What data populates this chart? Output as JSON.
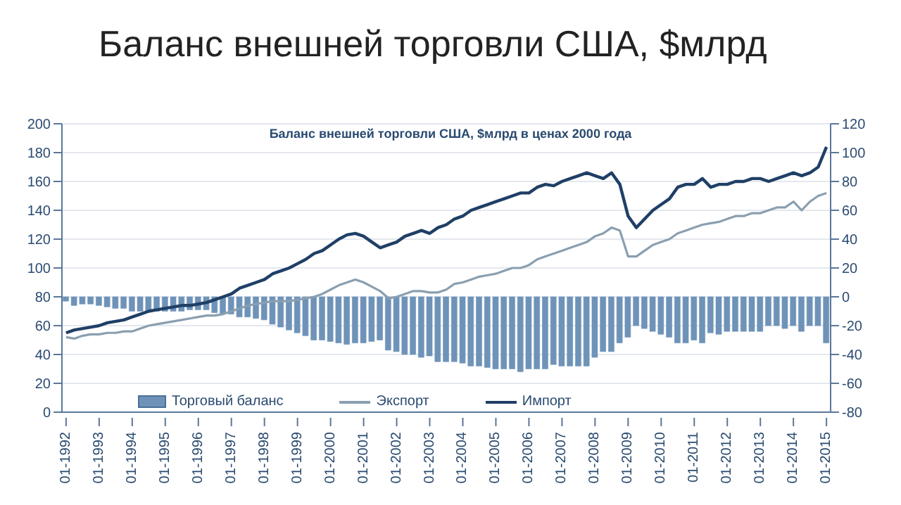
{
  "chart_data": {
    "type": "bar",
    "title": "Баланс внешней торговли США, $млрд",
    "subtitle": "Баланс внешней торговли США, $млрд в ценах 2000 года",
    "categories": [
      "01-1992",
      null,
      null,
      null,
      "01-1993",
      null,
      null,
      null,
      "01-1994",
      null,
      null,
      null,
      "01-1995",
      null,
      null,
      null,
      "01-1996",
      null,
      null,
      null,
      "01-1997",
      null,
      null,
      null,
      "01-1998",
      null,
      null,
      null,
      "01-1999",
      null,
      null,
      null,
      "01-2000",
      null,
      null,
      null,
      "01-2001",
      null,
      null,
      null,
      "01-2002",
      null,
      null,
      null,
      "01-2003",
      null,
      null,
      null,
      "01-2004",
      null,
      null,
      null,
      "01-2005",
      null,
      null,
      null,
      "01-2006",
      null,
      null,
      null,
      "01-2007",
      null,
      null,
      null,
      "01-2008",
      null,
      null,
      null,
      "01-2009",
      null,
      null,
      null,
      "01-2010",
      null,
      null,
      null,
      "01-2011",
      null,
      null,
      null,
      "01-2012",
      null,
      null,
      null,
      "01-2013",
      null,
      null,
      null,
      "01-2014",
      null,
      null,
      null,
      "01-2015"
    ],
    "series": [
      {
        "name": "Торговый баланс",
        "axis": "y2",
        "color": "#6f93b8",
        "values": [
          -3,
          -6,
          -5,
          -5,
          -6,
          -7,
          -8,
          -8,
          -10,
          -10,
          -10,
          -10,
          -10,
          -10,
          -10,
          -9,
          -9,
          -9,
          -11,
          -12,
          -12,
          -14,
          -14,
          -15,
          -16,
          -19,
          -21,
          -23,
          -25,
          -27,
          -30,
          -30,
          -31,
          -32,
          -33,
          -32,
          -32,
          -31,
          -30,
          -37,
          -38,
          -40,
          -40,
          -42,
          -41,
          -45,
          -45,
          -45,
          -46,
          -48,
          -48,
          -49,
          -50,
          -50,
          -50,
          -52,
          -50,
          -50,
          -50,
          -47,
          -48,
          -48,
          -48,
          -48,
          -42,
          -38,
          -38,
          -32,
          -28,
          -20,
          -22,
          -24,
          -26,
          -28,
          -32,
          -32,
          -30,
          -32,
          -25,
          -26,
          -24,
          -24,
          -24,
          -24,
          -24,
          -20,
          -20,
          -22,
          -20,
          -24,
          -20,
          -20,
          -32
        ]
      },
      {
        "name": "Экспорт",
        "type": "line",
        "color": "#8a9fb0",
        "values": [
          52,
          51,
          53,
          54,
          54,
          55,
          55,
          56,
          56,
          58,
          60,
          61,
          62,
          63,
          64,
          65,
          66,
          67,
          67,
          68,
          70,
          72,
          74,
          75,
          76,
          77,
          77,
          77,
          78,
          79,
          80,
          82,
          85,
          88,
          90,
          92,
          90,
          87,
          84,
          79,
          80,
          82,
          84,
          84,
          83,
          83,
          85,
          89,
          90,
          92,
          94,
          95,
          96,
          98,
          100,
          100,
          102,
          106,
          108,
          110,
          112,
          114,
          116,
          118,
          122,
          124,
          128,
          126,
          108,
          108,
          112,
          116,
          118,
          120,
          124,
          126,
          128,
          130,
          131,
          132,
          134,
          136,
          136,
          138,
          138,
          140,
          142,
          142,
          146,
          140,
          146,
          150,
          152
        ]
      },
      {
        "name": "Импорт",
        "type": "line",
        "color": "#1f3f66",
        "values": [
          55,
          57,
          58,
          59,
          60,
          62,
          63,
          64,
          66,
          68,
          70,
          71,
          72,
          73,
          74,
          74,
          75,
          76,
          78,
          80,
          82,
          86,
          88,
          90,
          92,
          96,
          98,
          100,
          103,
          106,
          110,
          112,
          116,
          120,
          123,
          124,
          122,
          118,
          114,
          116,
          118,
          122,
          124,
          126,
          124,
          128,
          130,
          134,
          136,
          140,
          142,
          144,
          146,
          148,
          150,
          152,
          152,
          156,
          158,
          157,
          160,
          162,
          164,
          166,
          164,
          162,
          166,
          158,
          136,
          128,
          134,
          140,
          144,
          148,
          156,
          158,
          158,
          162,
          156,
          158,
          158,
          160,
          160,
          162,
          162,
          160,
          162,
          164,
          166,
          164,
          166,
          170,
          184
        ]
      }
    ],
    "ylim": [
      0,
      200
    ],
    "yticks": [
      0,
      20,
      40,
      60,
      80,
      100,
      120,
      140,
      160,
      180,
      200
    ],
    "y2lim": [
      -80,
      120
    ],
    "y2ticks": [
      -80,
      -60,
      -40,
      -20,
      0,
      20,
      40,
      60,
      80,
      100,
      120
    ],
    "grid": "y",
    "legend": "bottom",
    "marker": "none",
    "line_style": "solid"
  }
}
